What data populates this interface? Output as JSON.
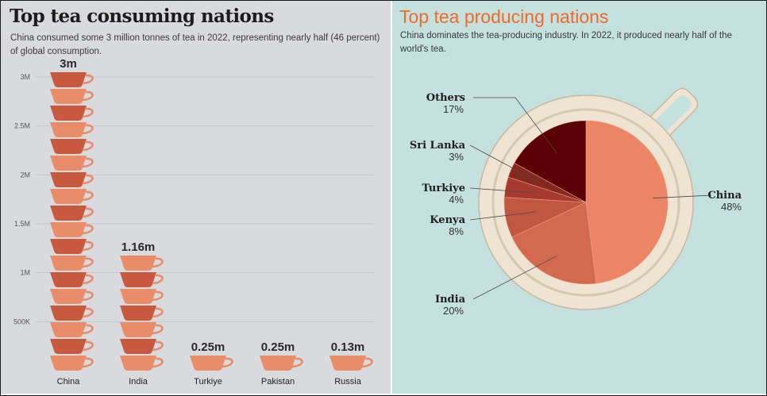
{
  "left": {
    "title": "Top tea consuming nations",
    "subtitle": "China consumed some 3 million tonnes of tea in 2022, representing nearly half (46 percent) of global consumption."
  },
  "right": {
    "title": "Top tea producing nations",
    "subtitle": "China dominates the tea-producing industry. In 2022, it produced nearly half of the world's tea."
  },
  "colors": {
    "cup_light": "#e98c69",
    "cup_dark": "#c75a3e",
    "pie_china": "#ec8466",
    "pie_india": "#d36a50",
    "pie_kenya": "#c25741",
    "pie_turkiye": "#a63a2f",
    "pie_srilanka": "#85281f",
    "pie_others": "#5a0004",
    "mug_rim": "#efe3d2",
    "mug_outline": "#c9b8a0"
  },
  "chart_data": [
    {
      "type": "bar",
      "title": "Top tea consuming nations",
      "categories": [
        "China",
        "India",
        "Turkiye",
        "Pakistan",
        "Russia"
      ],
      "values": [
        3000000,
        1160000,
        250000,
        250000,
        130000
      ],
      "data_labels": [
        "3m",
        "1.16m",
        "0.25m",
        "0.25m",
        "0.13m"
      ],
      "y_ticks": [
        500000,
        1000000,
        1500000,
        2000000,
        2500000,
        3000000
      ],
      "y_tick_labels": [
        "500K",
        "1M",
        "1.5M",
        "2M",
        "2.5M",
        "3M"
      ],
      "ylim": [
        0,
        3000000
      ],
      "grid": true
    },
    {
      "type": "pie",
      "title": "Top tea producing nations",
      "labels": [
        "China",
        "India",
        "Kenya",
        "Turkiye",
        "Sri Lanka",
        "Others"
      ],
      "values": [
        48,
        20,
        8,
        4,
        3,
        17
      ],
      "value_labels": [
        "48%",
        "20%",
        "8%",
        "4%",
        "3%",
        "17%"
      ]
    }
  ]
}
